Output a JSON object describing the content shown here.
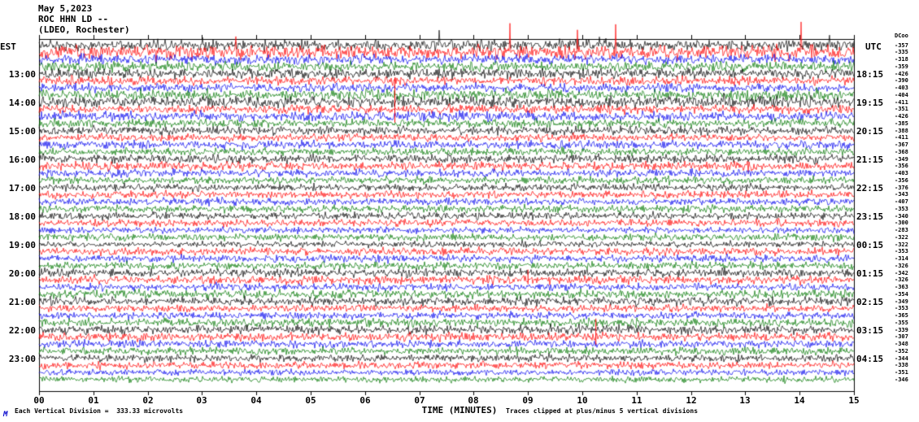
{
  "header": {
    "date": "May 5,2023",
    "station": "ROC HHN LD --",
    "location": "(LDEO, Rochester)"
  },
  "axes": {
    "left_label": "EST",
    "right_label": "UTC",
    "bottom_label": "TIME (MINUTES)",
    "offset_header": "DCoo",
    "minute_ticks": [
      "00",
      "01",
      "02",
      "03",
      "04",
      "05",
      "06",
      "07",
      "08",
      "09",
      "10",
      "11",
      "12",
      "13",
      "14",
      "15"
    ],
    "left_times": [
      "13:00",
      "14:00",
      "15:00",
      "16:00",
      "17:00",
      "18:00",
      "19:00",
      "20:00",
      "21:00",
      "22:00",
      "23:00"
    ],
    "right_times": [
      "18:15",
      "19:15",
      "20:15",
      "21:15",
      "22:15",
      "23:15",
      "00:15",
      "01:15",
      "02:15",
      "03:15",
      "04:15"
    ]
  },
  "footer": {
    "scale_text": "Each Vertical Division =  333.33 microvolts",
    "clip_text": "Traces clipped at plus/minus 5 vertical divisions",
    "logo": "M"
  },
  "chart_data": {
    "type": "line",
    "title": "ROC HHN LD -- (LDEO, Rochester) May 5,2023",
    "xlabel": "TIME (MINUTES)",
    "x_range_minutes": [
      0,
      15
    ],
    "trace_interval_minutes": 15,
    "start_time_est": "12:00",
    "rows": 48,
    "colors_cycle": [
      "#000000",
      "#ff0000",
      "#0000ee",
      "#007700"
    ],
    "clip_divisions": 5,
    "microvolts_per_division": 333.33,
    "dc_offsets": [
      -357,
      -335,
      -318,
      -359,
      -426,
      -390,
      -403,
      -404,
      -411,
      -351,
      -426,
      -385,
      -388,
      -411,
      -367,
      -368,
      -349,
      -356,
      -403,
      -356,
      -376,
      -343,
      -407,
      -353,
      -340,
      -300,
      -283,
      -322,
      -322,
      -353,
      -314,
      -326,
      -342,
      -326,
      -363,
      -354,
      -349,
      -353,
      -365,
      -355,
      -339,
      -307,
      -348,
      -352,
      -344,
      -338,
      -351,
      -346
    ],
    "amplitudes": [
      9,
      11,
      8,
      8,
      8,
      7,
      7,
      9,
      9,
      7,
      8,
      7,
      7,
      6,
      7,
      6,
      7,
      7,
      6,
      6,
      6,
      6,
      6,
      6,
      6,
      6,
      5,
      6,
      5,
      6,
      6,
      6,
      7,
      7,
      6,
      7,
      7,
      6,
      6,
      7,
      7,
      7,
      6,
      6,
      6,
      6,
      5,
      5
    ],
    "spike_rows": {
      "0": 16,
      "1": 38,
      "8": 10
    },
    "events": [
      {
        "row": 9,
        "minute": 6.55,
        "height": 55
      },
      {
        "row": 41,
        "minute": 10.25,
        "height": 32
      },
      {
        "row": 33,
        "minute": 9.0,
        "height": 18
      }
    ]
  }
}
